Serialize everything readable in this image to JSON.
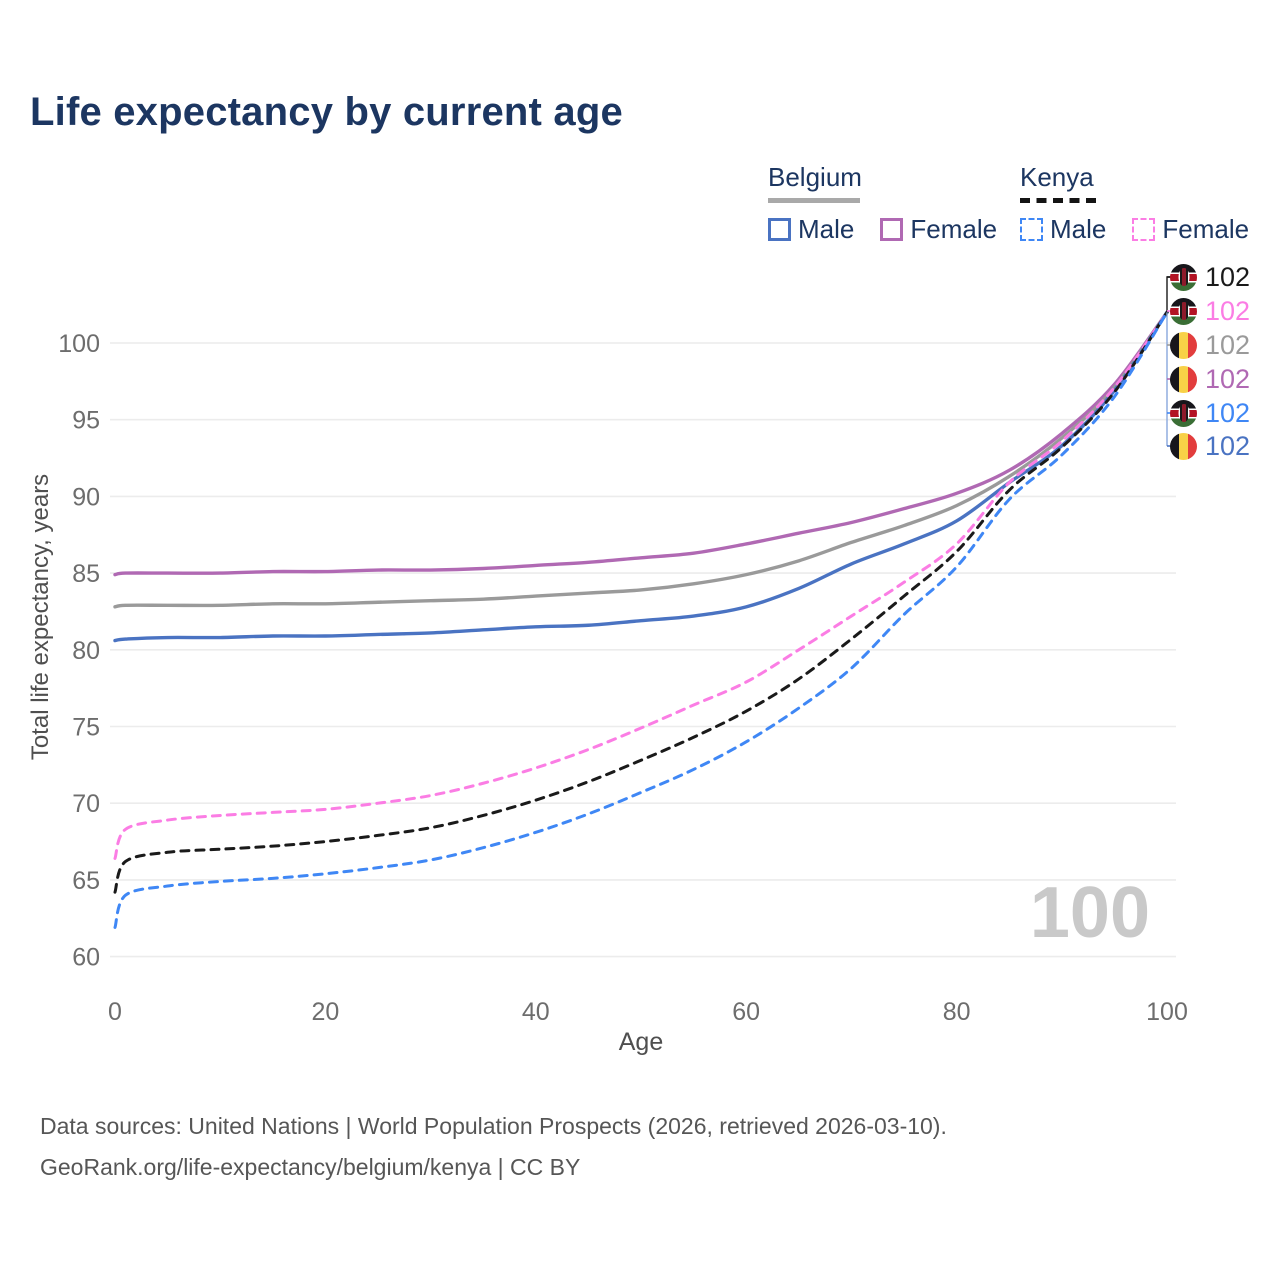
{
  "page": {
    "title": "Life expectancy by current age"
  },
  "legend": {
    "groups": [
      {
        "country": "Belgium",
        "underline": "solid",
        "underline_color": "#a9a9a9",
        "items": [
          {
            "label": "Male",
            "color": "#4a73c2",
            "dash": false
          },
          {
            "label": "Female",
            "color": "#b069b3",
            "dash": false
          }
        ]
      },
      {
        "country": "Kenya",
        "underline": "dashed",
        "underline_color": "#141414",
        "items": [
          {
            "label": "Male",
            "color": "#3f87f5",
            "dash": true
          },
          {
            "label": "Female",
            "color": "#fb7de4",
            "dash": true
          }
        ]
      }
    ]
  },
  "chart_data": {
    "type": "line",
    "title": "Life expectancy by current age",
    "xlabel": "Age",
    "ylabel": "Total life expectancy, years",
    "xlim": [
      0,
      100
    ],
    "ylim": [
      58,
      103
    ],
    "xticks": [
      0,
      20,
      40,
      60,
      80,
      100
    ],
    "yticks": [
      60,
      65,
      70,
      75,
      80,
      85,
      90,
      95,
      100
    ],
    "grid": "horizontal",
    "legend_position": "top-right",
    "watermark": "100",
    "x": [
      0,
      1,
      5,
      10,
      15,
      20,
      25,
      30,
      35,
      40,
      45,
      50,
      55,
      60,
      65,
      70,
      75,
      80,
      85,
      90,
      95,
      100
    ],
    "series": [
      {
        "name": "Belgium Female",
        "country": "Belgium",
        "sex": "Female",
        "style": "solid",
        "color": "#b069b3",
        "end_label": "102",
        "values": [
          84.9,
          85,
          85,
          85,
          85.1,
          85.1,
          85.2,
          85.2,
          85.3,
          85.5,
          85.7,
          86,
          86.3,
          86.9,
          87.6,
          88.3,
          89.2,
          90.2,
          91.7,
          94.1,
          97.3,
          102
        ]
      },
      {
        "name": "Belgium (both sexes)",
        "country": "Belgium",
        "sex": "Both",
        "style": "solid",
        "color": "#9a9a9a",
        "end_label": "102",
        "values": [
          82.8,
          82.9,
          82.9,
          82.9,
          83,
          83,
          83.1,
          83.2,
          83.3,
          83.5,
          83.7,
          83.9,
          84.3,
          84.9,
          85.8,
          87,
          88.1,
          89.4,
          91.3,
          93.8,
          97.1,
          102
        ]
      },
      {
        "name": "Belgium Male",
        "country": "Belgium",
        "sex": "Male",
        "style": "solid",
        "color": "#4a73c2",
        "end_label": "102",
        "values": [
          80.6,
          80.7,
          80.8,
          80.8,
          80.9,
          80.9,
          81,
          81.1,
          81.3,
          81.5,
          81.6,
          81.9,
          82.2,
          82.8,
          84,
          85.6,
          86.9,
          88.4,
          90.9,
          93.3,
          96.9,
          102
        ]
      },
      {
        "name": "Kenya Female",
        "country": "Kenya",
        "sex": "Female",
        "style": "dashed",
        "color": "#fb7de4",
        "end_label": "102",
        "values": [
          66.4,
          68.3,
          68.9,
          69.2,
          69.4,
          69.6,
          70,
          70.5,
          71.3,
          72.3,
          73.5,
          74.9,
          76.4,
          77.9,
          80,
          82.2,
          84.4,
          86.9,
          90.9,
          93.6,
          97.1,
          102
        ]
      },
      {
        "name": "Kenya (both sexes)",
        "country": "Kenya",
        "sex": "Both",
        "style": "dashed",
        "color": "#1a1a1a",
        "end_label": "102",
        "values": [
          64.2,
          66.2,
          66.8,
          67,
          67.2,
          67.5,
          67.9,
          68.4,
          69.2,
          70.2,
          71.4,
          72.8,
          74.3,
          76,
          78.1,
          80.7,
          83.5,
          86.4,
          90.4,
          93.2,
          96.8,
          102
        ]
      },
      {
        "name": "Kenya Male",
        "country": "Kenya",
        "sex": "Male",
        "style": "dashed",
        "color": "#3f87f5",
        "end_label": "102",
        "values": [
          61.9,
          64,
          64.6,
          64.9,
          65.1,
          65.4,
          65.8,
          66.3,
          67.1,
          68.1,
          69.3,
          70.7,
          72.2,
          74,
          76.2,
          78.8,
          82.3,
          85.4,
          89.8,
          92.7,
          96.5,
          102
        ]
      }
    ]
  },
  "end_labels": [
    {
      "flag": "kenya",
      "series": "Kenya (both sexes)",
      "value": "102",
      "color": "#1a1a1a"
    },
    {
      "flag": "kenya",
      "series": "Kenya Female",
      "value": "102",
      "color": "#fb7de4"
    },
    {
      "flag": "belgium",
      "series": "Belgium (both sexes)",
      "value": "102",
      "color": "#9a9a9a"
    },
    {
      "flag": "belgium",
      "series": "Belgium Female",
      "value": "102",
      "color": "#b069b3"
    },
    {
      "flag": "kenya",
      "series": "Kenya Male",
      "value": "102",
      "color": "#3f87f5"
    },
    {
      "flag": "belgium",
      "series": "Belgium Male",
      "value": "102",
      "color": "#4a73c2"
    }
  ],
  "footer": {
    "line1": "Data sources: United Nations | World Population Prospects (2026, retrieved 2026-03-10).",
    "line2": "GeoRank.org/life-expectancy/belgium/kenya | CC BY"
  }
}
